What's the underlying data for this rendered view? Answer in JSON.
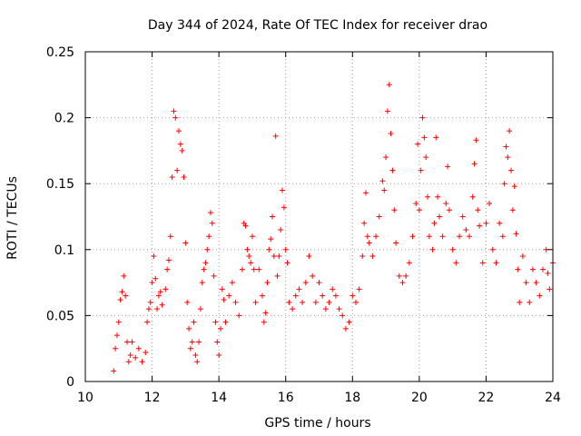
{
  "chart_data": {
    "type": "scatter",
    "title": "Day 344 of 2024, Rate Of TEC Index for receiver drao",
    "xlabel": "GPS time / hours",
    "ylabel": "ROTI / TECUs",
    "xlim": [
      10,
      24
    ],
    "ylim": [
      0,
      0.25
    ],
    "x_ticks": [
      "10",
      "12",
      "14",
      "16",
      "18",
      "20",
      "22",
      "24"
    ],
    "y_ticks": [
      "0",
      "0.05",
      "0.1",
      "0.15",
      "0.2",
      "0.25"
    ],
    "grid": true,
    "marker": "+",
    "series": [
      {
        "color": "#ff0000",
        "points": [
          [
            10.85,
            0.008
          ],
          [
            10.9,
            0.025
          ],
          [
            10.95,
            0.035
          ],
          [
            11.0,
            0.045
          ],
          [
            11.05,
            0.062
          ],
          [
            11.1,
            0.068
          ],
          [
            11.15,
            0.08
          ],
          [
            11.2,
            0.065
          ],
          [
            11.25,
            0.03
          ],
          [
            11.3,
            0.015
          ],
          [
            11.35,
            0.02
          ],
          [
            11.4,
            0.03
          ],
          [
            11.5,
            0.018
          ],
          [
            11.6,
            0.025
          ],
          [
            11.7,
            0.015
          ],
          [
            11.8,
            0.022
          ],
          [
            11.85,
            0.045
          ],
          [
            11.9,
            0.055
          ],
          [
            11.95,
            0.06
          ],
          [
            12.0,
            0.075
          ],
          [
            12.05,
            0.095
          ],
          [
            12.1,
            0.078
          ],
          [
            12.15,
            0.055
          ],
          [
            12.2,
            0.065
          ],
          [
            12.25,
            0.068
          ],
          [
            12.3,
            0.058
          ],
          [
            12.4,
            0.07
          ],
          [
            12.45,
            0.085
          ],
          [
            12.5,
            0.092
          ],
          [
            12.55,
            0.11
          ],
          [
            12.6,
            0.155
          ],
          [
            12.65,
            0.205
          ],
          [
            12.7,
            0.2
          ],
          [
            12.75,
            0.16
          ],
          [
            12.8,
            0.19
          ],
          [
            12.85,
            0.18
          ],
          [
            12.9,
            0.175
          ],
          [
            12.95,
            0.155
          ],
          [
            13.0,
            0.105
          ],
          [
            13.05,
            0.06
          ],
          [
            13.1,
            0.04
          ],
          [
            13.15,
            0.025
          ],
          [
            13.2,
            0.03
          ],
          [
            13.25,
            0.045
          ],
          [
            13.3,
            0.02
          ],
          [
            13.35,
            0.015
          ],
          [
            13.4,
            0.03
          ],
          [
            13.45,
            0.055
          ],
          [
            13.5,
            0.075
          ],
          [
            13.55,
            0.085
          ],
          [
            13.6,
            0.09
          ],
          [
            13.65,
            0.1
          ],
          [
            13.7,
            0.11
          ],
          [
            13.75,
            0.128
          ],
          [
            13.8,
            0.12
          ],
          [
            13.85,
            0.08
          ],
          [
            13.9,
            0.045
          ],
          [
            13.95,
            0.03
          ],
          [
            14.0,
            0.02
          ],
          [
            14.05,
            0.04
          ],
          [
            14.1,
            0.07
          ],
          [
            14.15,
            0.062
          ],
          [
            14.2,
            0.045
          ],
          [
            14.3,
            0.065
          ],
          [
            14.4,
            0.075
          ],
          [
            14.5,
            0.06
          ],
          [
            14.6,
            0.05
          ],
          [
            14.7,
            0.085
          ],
          [
            14.75,
            0.12
          ],
          [
            14.8,
            0.118
          ],
          [
            14.85,
            0.1
          ],
          [
            14.9,
            0.095
          ],
          [
            14.95,
            0.09
          ],
          [
            15.0,
            0.11
          ],
          [
            15.05,
            0.085
          ],
          [
            15.1,
            0.06
          ],
          [
            15.2,
            0.085
          ],
          [
            15.3,
            0.065
          ],
          [
            15.35,
            0.045
          ],
          [
            15.4,
            0.052
          ],
          [
            15.45,
            0.075
          ],
          [
            15.5,
            0.1
          ],
          [
            15.55,
            0.108
          ],
          [
            15.6,
            0.125
          ],
          [
            15.65,
            0.095
          ],
          [
            15.7,
            0.186
          ],
          [
            15.75,
            0.08
          ],
          [
            15.8,
            0.095
          ],
          [
            15.85,
            0.115
          ],
          [
            15.9,
            0.145
          ],
          [
            15.95,
            0.132
          ],
          [
            16.0,
            0.1
          ],
          [
            16.05,
            0.09
          ],
          [
            16.1,
            0.06
          ],
          [
            16.2,
            0.055
          ],
          [
            16.3,
            0.065
          ],
          [
            16.4,
            0.07
          ],
          [
            16.5,
            0.06
          ],
          [
            16.6,
            0.075
          ],
          [
            16.7,
            0.095
          ],
          [
            16.8,
            0.08
          ],
          [
            16.9,
            0.06
          ],
          [
            17.0,
            0.075
          ],
          [
            17.1,
            0.065
          ],
          [
            17.2,
            0.055
          ],
          [
            17.3,
            0.06
          ],
          [
            17.4,
            0.07
          ],
          [
            17.5,
            0.065
          ],
          [
            17.6,
            0.055
          ],
          [
            17.7,
            0.05
          ],
          [
            17.8,
            0.04
          ],
          [
            17.9,
            0.045
          ],
          [
            18.0,
            0.065
          ],
          [
            18.1,
            0.06
          ],
          [
            18.2,
            0.07
          ],
          [
            18.3,
            0.095
          ],
          [
            18.35,
            0.12
          ],
          [
            18.4,
            0.143
          ],
          [
            18.45,
            0.11
          ],
          [
            18.5,
            0.105
          ],
          [
            18.6,
            0.095
          ],
          [
            18.7,
            0.11
          ],
          [
            18.8,
            0.125
          ],
          [
            18.9,
            0.152
          ],
          [
            18.95,
            0.145
          ],
          [
            19.0,
            0.17
          ],
          [
            19.05,
            0.205
          ],
          [
            19.1,
            0.225
          ],
          [
            19.15,
            0.188
          ],
          [
            19.2,
            0.16
          ],
          [
            19.25,
            0.13
          ],
          [
            19.3,
            0.105
          ],
          [
            19.4,
            0.08
          ],
          [
            19.5,
            0.075
          ],
          [
            19.6,
            0.08
          ],
          [
            19.7,
            0.09
          ],
          [
            19.8,
            0.11
          ],
          [
            19.9,
            0.135
          ],
          [
            19.95,
            0.18
          ],
          [
            20.0,
            0.13
          ],
          [
            20.05,
            0.16
          ],
          [
            20.1,
            0.2
          ],
          [
            20.15,
            0.185
          ],
          [
            20.2,
            0.17
          ],
          [
            20.25,
            0.14
          ],
          [
            20.3,
            0.11
          ],
          [
            20.4,
            0.1
          ],
          [
            20.45,
            0.12
          ],
          [
            20.5,
            0.185
          ],
          [
            20.55,
            0.14
          ],
          [
            20.6,
            0.125
          ],
          [
            20.7,
            0.11
          ],
          [
            20.8,
            0.135
          ],
          [
            20.85,
            0.163
          ],
          [
            20.9,
            0.13
          ],
          [
            21.0,
            0.1
          ],
          [
            21.1,
            0.09
          ],
          [
            21.2,
            0.11
          ],
          [
            21.3,
            0.125
          ],
          [
            21.4,
            0.115
          ],
          [
            21.5,
            0.11
          ],
          [
            21.6,
            0.14
          ],
          [
            21.65,
            0.165
          ],
          [
            21.7,
            0.183
          ],
          [
            21.75,
            0.13
          ],
          [
            21.8,
            0.118
          ],
          [
            21.9,
            0.09
          ],
          [
            22.0,
            0.12
          ],
          [
            22.1,
            0.135
          ],
          [
            22.2,
            0.1
          ],
          [
            22.3,
            0.09
          ],
          [
            22.4,
            0.12
          ],
          [
            22.5,
            0.11
          ],
          [
            22.55,
            0.15
          ],
          [
            22.6,
            0.178
          ],
          [
            22.65,
            0.17
          ],
          [
            22.7,
            0.19
          ],
          [
            22.75,
            0.16
          ],
          [
            22.8,
            0.13
          ],
          [
            22.85,
            0.148
          ],
          [
            22.9,
            0.112
          ],
          [
            22.95,
            0.085
          ],
          [
            23.0,
            0.06
          ],
          [
            23.1,
            0.095
          ],
          [
            23.2,
            0.075
          ],
          [
            23.3,
            0.06
          ],
          [
            23.4,
            0.085
          ],
          [
            23.5,
            0.075
          ],
          [
            23.6,
            0.065
          ],
          [
            23.7,
            0.085
          ],
          [
            23.8,
            0.1
          ],
          [
            23.85,
            0.082
          ],
          [
            23.9,
            0.07
          ],
          [
            24.0,
            0.09
          ]
        ]
      }
    ]
  }
}
